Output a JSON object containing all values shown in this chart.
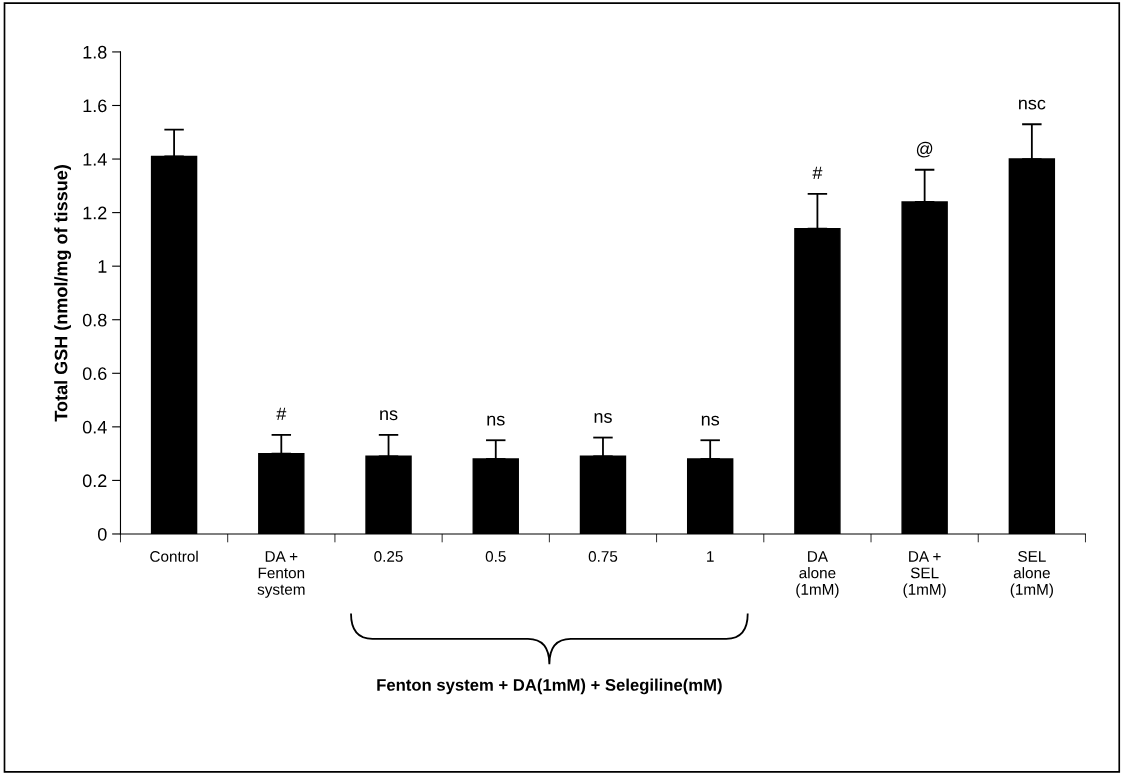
{
  "chart_data": {
    "type": "bar",
    "ylabel": "Total GSH (nmol/mg of tissue)",
    "categories": [
      "Control",
      "DA +\nFenton\nsystem",
      "0.25",
      "0.5",
      "0.75",
      "1",
      "DA\nalone\n(1mM)",
      "DA +\nSEL\n(1mM)",
      "SEL\nalone\n(1mM)"
    ],
    "values": [
      1.41,
      0.3,
      0.29,
      0.28,
      0.29,
      0.28,
      1.14,
      1.24,
      1.4
    ],
    "errors": [
      0.1,
      0.07,
      0.08,
      0.07,
      0.07,
      0.07,
      0.13,
      0.12,
      0.13
    ],
    "color": "#000000",
    "ylim": [
      0,
      1.8
    ],
    "yticks": [
      0,
      0.2,
      0.4,
      0.6,
      0.8,
      1,
      1.2,
      1.4,
      1.6,
      1.8
    ],
    "grid": false,
    "annotations": [
      {
        "text": "#",
        "x": "DA +\nFenton\nsystem",
        "y": 0.37
      },
      {
        "text": "ns",
        "x": "0.25",
        "y": 0.37
      },
      {
        "text": "ns",
        "x": "0.5",
        "y": 0.35
      },
      {
        "text": "ns",
        "x": "0.75",
        "y": 0.36
      },
      {
        "text": "ns",
        "x": "1",
        "y": 0.35
      },
      {
        "text": "#",
        "x": "DA\nalone\n(1mM)",
        "y": 1.27
      },
      {
        "text": "@",
        "x": "DA +\nSEL\n(1mM)",
        "y": 1.36
      },
      {
        "text": "nsc",
        "x": "SEL\nalone\n(1mM)",
        "y": 1.53
      },
      "Fenton system + DA(1mM) + Selegiline(mM)"
    ]
  }
}
